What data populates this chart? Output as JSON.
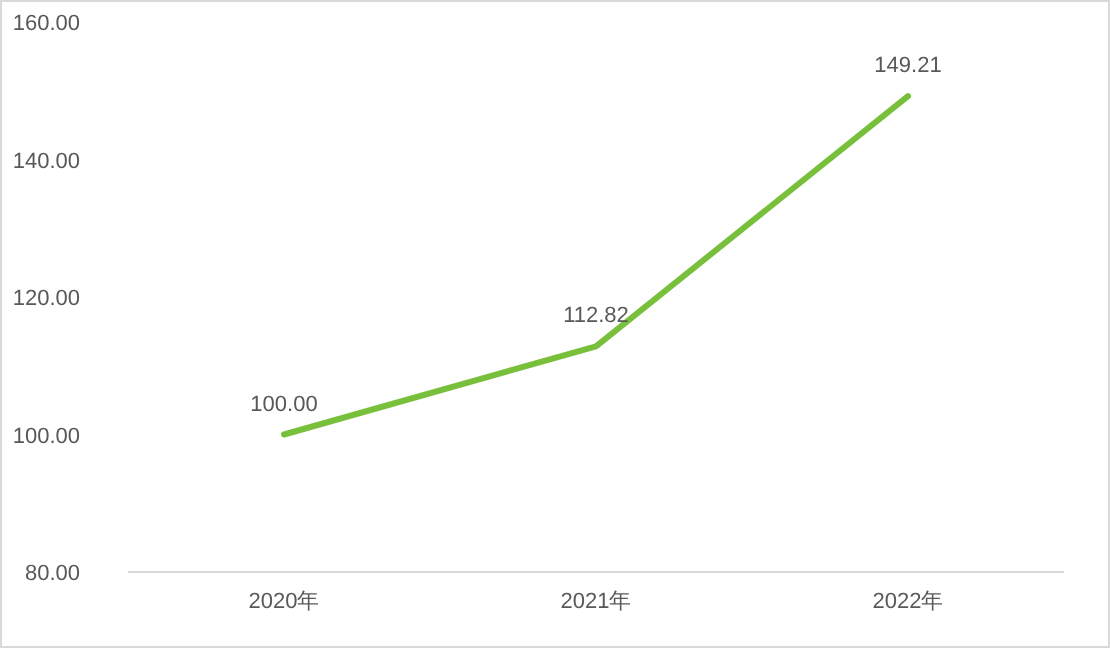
{
  "chart_data": {
    "type": "line",
    "categories": [
      "2020年",
      "2021年",
      "2022年"
    ],
    "series": [
      {
        "color": "#78c03c",
        "values": [
          100.0,
          112.82,
          149.21
        ],
        "value_labels": [
          "100.00",
          "112.82",
          "149.21"
        ]
      }
    ],
    "ylim": [
      80,
      160
    ],
    "yticks": [
      {
        "value": 80,
        "label": "80.00"
      },
      {
        "value": 100,
        "label": "100.00"
      },
      {
        "value": 120,
        "label": "120.00"
      },
      {
        "value": 140,
        "label": "140.00"
      },
      {
        "value": 160,
        "label": "160.00"
      }
    ],
    "grid": false,
    "marker": "none",
    "line_style": "solid"
  }
}
